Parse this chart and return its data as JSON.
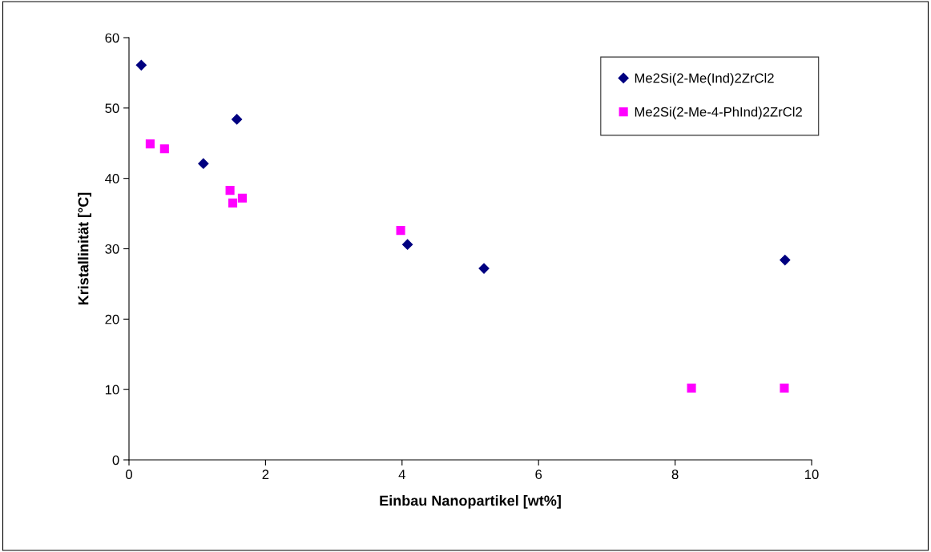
{
  "chart_data": {
    "type": "scatter",
    "xlabel": "Einbau Nanopartikel [wt%]",
    "ylabel": "Kristallinität [°C]",
    "xlim": [
      0,
      10
    ],
    "xticks": [
      0,
      2,
      4,
      6,
      8,
      10
    ],
    "ylim": [
      0,
      60
    ],
    "yticks": [
      0,
      10,
      20,
      30,
      40,
      50,
      60
    ],
    "grid": false,
    "legend": "top right",
    "series": [
      {
        "name": "Me2Si(2-Me(Ind)2ZrCl2",
        "color": "#000080",
        "marker": "diamond",
        "x": [
          0.18,
          1.09,
          1.58,
          4.08,
          5.2,
          9.61
        ],
        "values": [
          56.1,
          42.1,
          48.4,
          30.6,
          27.2,
          28.4
        ]
      },
      {
        "name": "Me2Si(2-Me-4-PhInd)2ZrCl2",
        "color": "#ff00ff",
        "marker": "square",
        "x": [
          0.31,
          0.52,
          1.48,
          1.52,
          1.66,
          3.98,
          8.24,
          9.6
        ],
        "values": [
          44.9,
          44.2,
          38.3,
          36.5,
          37.2,
          32.6,
          10.2,
          10.2
        ]
      }
    ]
  }
}
